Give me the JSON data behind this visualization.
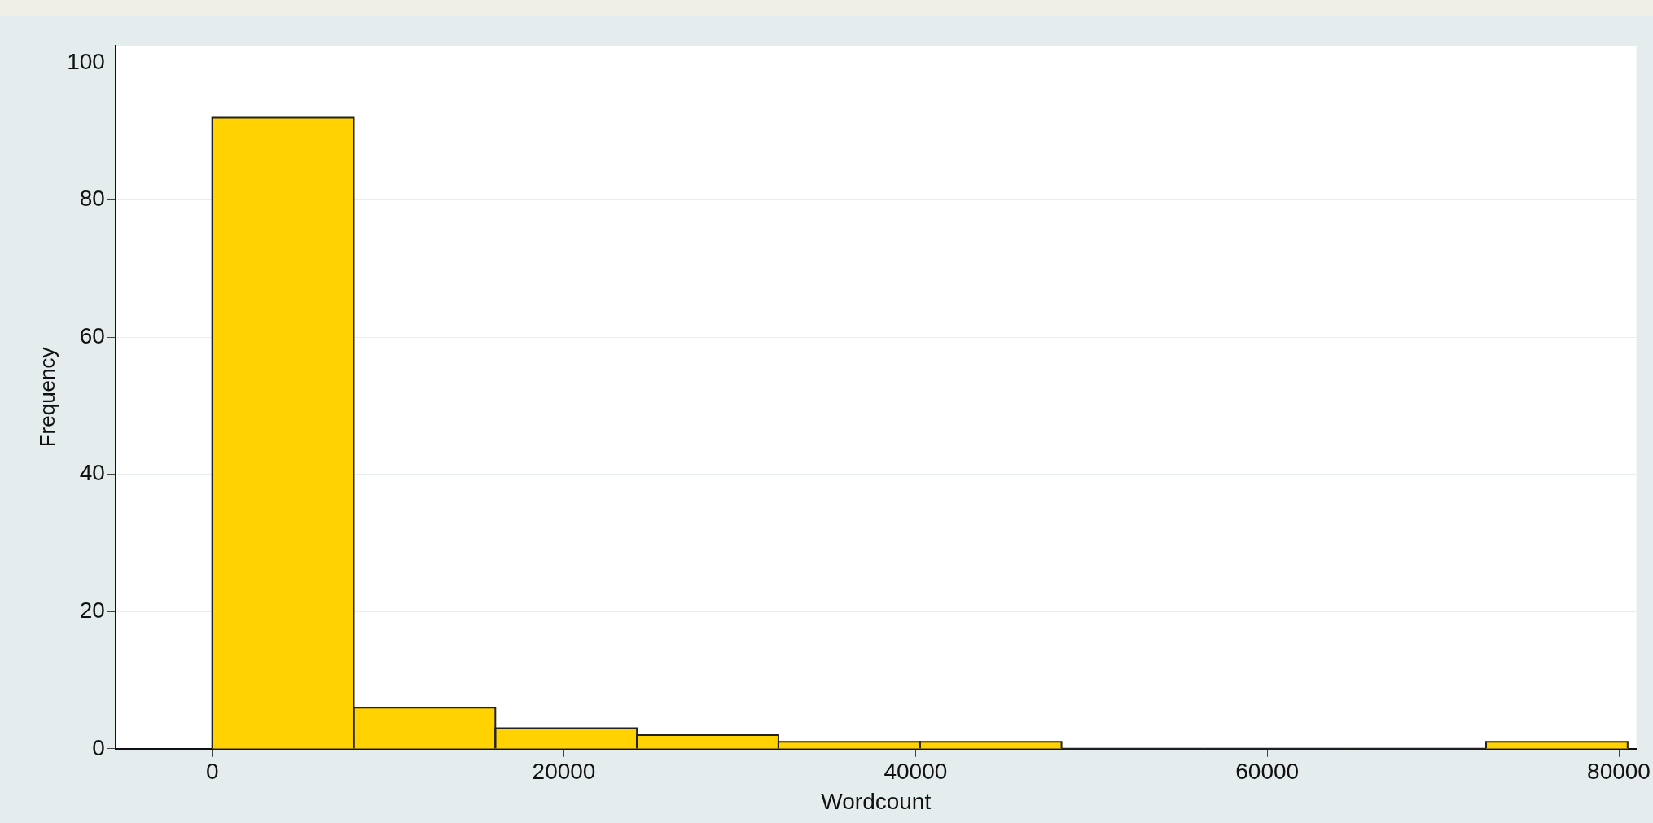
{
  "chart_data": {
    "type": "histogram",
    "xlabel": "Wordcount",
    "ylabel": "Frequency",
    "bins": [
      0,
      8050,
      16100,
      24150,
      32200,
      40250,
      48300,
      56350,
      64400,
      72450,
      80500
    ],
    "values": [
      92,
      6,
      3,
      2,
      1,
      1,
      0,
      0,
      0,
      1
    ],
    "color": "#ffd200",
    "xlim": [
      -5500,
      81000
    ],
    "xticks": [
      0,
      20000,
      40000,
      60000,
      80000
    ],
    "ylim": [
      0,
      102.5
    ],
    "yticks": [
      0,
      20,
      40,
      60,
      80,
      100
    ],
    "grid": "y",
    "legend": false
  }
}
